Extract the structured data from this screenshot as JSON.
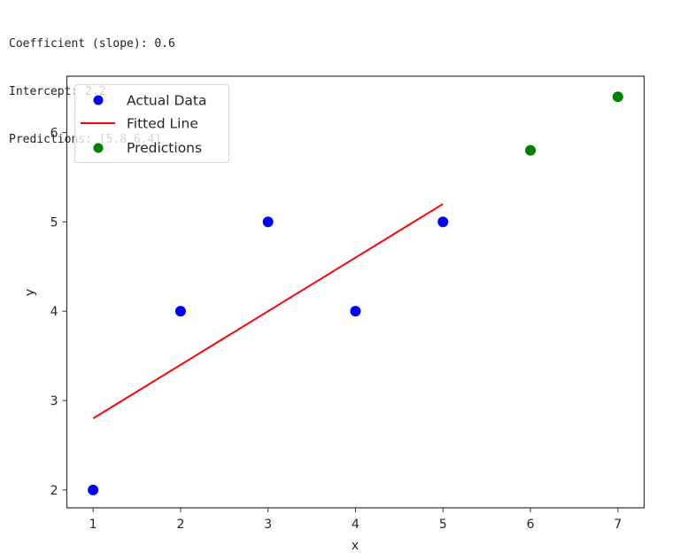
{
  "output": {
    "lines": [
      "Coefficient (slope): 0.6",
      "Intercept: 2.2",
      "Predictions: [5.8 6.4]"
    ]
  },
  "chart_data": {
    "type": "scatter",
    "title": "",
    "xlabel": "x",
    "ylabel": "y",
    "xlim": [
      0.7,
      7.3
    ],
    "ylim": [
      1.8,
      6.63
    ],
    "xticks": [
      1,
      2,
      3,
      4,
      5,
      6,
      7
    ],
    "yticks": [
      2,
      3,
      4,
      5,
      6
    ],
    "grid": false,
    "legend_position": "upper left",
    "series": [
      {
        "name": "Actual Data",
        "kind": "scatter",
        "color": "#0000ff",
        "x": [
          1,
          2,
          3,
          4,
          5
        ],
        "y": [
          2,
          4,
          5,
          4,
          5
        ]
      },
      {
        "name": "Fitted Line",
        "kind": "line",
        "color": "#ff0000",
        "x": [
          1,
          2,
          3,
          4,
          5
        ],
        "y": [
          2.8,
          3.4,
          4.0,
          4.6,
          5.2
        ]
      },
      {
        "name": "Predictions",
        "kind": "scatter",
        "color": "#008000",
        "x": [
          6,
          7
        ],
        "y": [
          5.8,
          6.4
        ]
      }
    ]
  },
  "legend": {
    "items": [
      {
        "label": "Actual Data",
        "marker": "dot",
        "color": "#0000ff"
      },
      {
        "label": "Fitted Line",
        "marker": "line",
        "color": "#ff0000"
      },
      {
        "label": "Predictions",
        "marker": "dot",
        "color": "#008000"
      }
    ]
  },
  "axes": {
    "xlabel": "x",
    "ylabel": "y",
    "xtick_labels": [
      "1",
      "2",
      "3",
      "4",
      "5",
      "6",
      "7"
    ],
    "ytick_labels": [
      "2",
      "3",
      "4",
      "5",
      "6"
    ]
  }
}
